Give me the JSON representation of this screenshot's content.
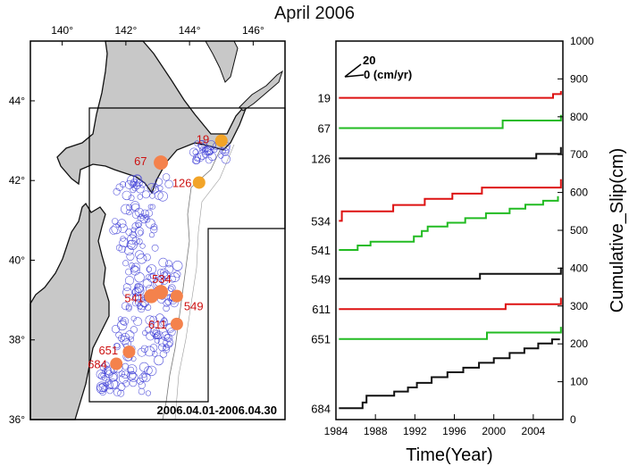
{
  "page": {
    "title": "April 2006"
  },
  "map": {
    "lon_ticks": [
      "140°",
      "142°",
      "144°",
      "146°"
    ],
    "lat_ticks": [
      "44°",
      "42°",
      "40°",
      "38°",
      "36°"
    ],
    "date_range": "2006.04.01-2006.04.30",
    "land_color": "#c8c8c8",
    "event_circle_color": "#3b3bd6",
    "site_colors": {
      "red_label": "#cc1111",
      "marker_orange": "#f4824c",
      "marker_yellow": "#f2a428"
    },
    "site_markers": [
      {
        "label": "19",
        "lon": 145.0,
        "lat": 43.0
      },
      {
        "label": "67",
        "lon": 143.1,
        "lat": 42.45
      },
      {
        "label": "126",
        "lon": 144.3,
        "lat": 41.95
      },
      {
        "label": "534",
        "lon": 143.1,
        "lat": 39.2
      },
      {
        "label": "541",
        "lon": 142.8,
        "lat": 39.1
      },
      {
        "label": "549",
        "lon": 143.6,
        "lat": 39.1
      },
      {
        "label": "611",
        "lon": 143.6,
        "lat": 38.4
      },
      {
        "label": "651",
        "lon": 142.1,
        "lat": 37.7
      },
      {
        "label": "684",
        "lon": 141.7,
        "lat": 37.4
      }
    ]
  },
  "chart_data": {
    "type": "line",
    "title": "April 2006",
    "xlabel": "Time(Year)",
    "ylabel": "Cumulative_Slip(cm)",
    "xlim": [
      1984,
      2007
    ],
    "ylim": [
      0,
      1000
    ],
    "x_ticks": [
      1984,
      1988,
      1992,
      1996,
      2000,
      2004
    ],
    "y_ticks": [
      0,
      100,
      200,
      300,
      400,
      500,
      600,
      700,
      800,
      900,
      1000
    ],
    "legend_vector": {
      "value": "20",
      "unit_label": "0 (cm/yr)"
    },
    "series": [
      {
        "name": "19",
        "color": "#dd1111",
        "points": [
          [
            1984.3,
            850
          ],
          [
            2006.0,
            850
          ],
          [
            2006.0,
            860
          ],
          [
            2006.8,
            860
          ],
          [
            2006.8,
            868
          ]
        ]
      },
      {
        "name": "67",
        "color": "#22bb22",
        "points": [
          [
            1984.3,
            770
          ],
          [
            2000.9,
            770
          ],
          [
            2000.9,
            790
          ],
          [
            2006.8,
            790
          ],
          [
            2006.8,
            805
          ]
        ]
      },
      {
        "name": "126",
        "color": "#111111",
        "points": [
          [
            1984.3,
            690
          ],
          [
            2004.3,
            690
          ],
          [
            2004.3,
            702
          ],
          [
            2006.8,
            702
          ],
          [
            2006.8,
            720
          ]
        ]
      },
      {
        "name": "534",
        "color": "#dd1111",
        "points": [
          [
            1984.3,
            525
          ],
          [
            1984.6,
            525
          ],
          [
            1984.6,
            550
          ],
          [
            1989.8,
            550
          ],
          [
            1989.8,
            567
          ],
          [
            1993.0,
            567
          ],
          [
            1993.0,
            583
          ],
          [
            1995.8,
            583
          ],
          [
            1995.8,
            597
          ],
          [
            1998.8,
            597
          ],
          [
            1998.8,
            613
          ],
          [
            2006.8,
            613
          ],
          [
            2006.8,
            635
          ]
        ]
      },
      {
        "name": "541",
        "color": "#22bb22",
        "points": [
          [
            1984.3,
            448
          ],
          [
            1986.2,
            448
          ],
          [
            1986.2,
            460
          ],
          [
            1987.5,
            460
          ],
          [
            1987.5,
            470
          ],
          [
            1991.9,
            470
          ],
          [
            1991.9,
            484
          ],
          [
            1992.7,
            484
          ],
          [
            1992.7,
            498
          ],
          [
            1993.3,
            498
          ],
          [
            1993.3,
            510
          ],
          [
            1995.3,
            510
          ],
          [
            1995.3,
            520
          ],
          [
            1997.1,
            520
          ],
          [
            1997.1,
            532
          ],
          [
            1999.2,
            532
          ],
          [
            1999.2,
            545
          ],
          [
            2001.6,
            545
          ],
          [
            2001.6,
            557
          ],
          [
            2003.2,
            557
          ],
          [
            2003.2,
            568
          ],
          [
            2005.0,
            568
          ],
          [
            2005.0,
            578
          ],
          [
            2006.5,
            578
          ],
          [
            2006.5,
            590
          ]
        ]
      },
      {
        "name": "549",
        "color": "#111111",
        "points": [
          [
            1984.3,
            372
          ],
          [
            1998.6,
            372
          ],
          [
            1998.6,
            385
          ],
          [
            2006.8,
            385
          ],
          [
            2006.8,
            402
          ]
        ]
      },
      {
        "name": "611",
        "color": "#dd1111",
        "points": [
          [
            1984.3,
            292
          ],
          [
            2001.2,
            292
          ],
          [
            2001.2,
            305
          ],
          [
            2006.8,
            305
          ],
          [
            2006.8,
            322
          ]
        ]
      },
      {
        "name": "651",
        "color": "#22bb22",
        "points": [
          [
            1984.3,
            213
          ],
          [
            1999.3,
            213
          ],
          [
            1999.3,
            230
          ],
          [
            2006.8,
            230
          ],
          [
            2006.8,
            245
          ]
        ]
      },
      {
        "name": "684",
        "color": "#111111",
        "points": [
          [
            1984.3,
            30
          ],
          [
            1986.7,
            30
          ],
          [
            1986.7,
            45
          ],
          [
            1987.1,
            45
          ],
          [
            1987.1,
            63
          ],
          [
            1989.9,
            63
          ],
          [
            1989.9,
            74
          ],
          [
            1991.3,
            74
          ],
          [
            1991.3,
            85
          ],
          [
            1992.2,
            85
          ],
          [
            1992.2,
            97
          ],
          [
            1993.7,
            97
          ],
          [
            1993.7,
            112
          ],
          [
            1995.3,
            112
          ],
          [
            1995.3,
            125
          ],
          [
            1996.9,
            125
          ],
          [
            1996.9,
            137
          ],
          [
            1998.5,
            137
          ],
          [
            1998.5,
            150
          ],
          [
            2000.0,
            150
          ],
          [
            2000.0,
            162
          ],
          [
            2001.6,
            162
          ],
          [
            2001.6,
            176
          ],
          [
            2003.1,
            176
          ],
          [
            2003.1,
            188
          ],
          [
            2004.5,
            188
          ],
          [
            2004.5,
            201
          ],
          [
            2005.9,
            201
          ],
          [
            2005.9,
            212
          ],
          [
            2006.7,
            212
          ]
        ]
      }
    ],
    "site_labels": [
      {
        "label": "19",
        "value": 850
      },
      {
        "label": "67",
        "value": 770
      },
      {
        "label": "126",
        "value": 690
      },
      {
        "label": "534",
        "value": 525
      },
      {
        "label": "541",
        "value": 448
      },
      {
        "label": "549",
        "value": 372
      },
      {
        "label": "611",
        "value": 292
      },
      {
        "label": "651",
        "value": 213
      },
      {
        "label": "684",
        "value": 30
      }
    ]
  }
}
